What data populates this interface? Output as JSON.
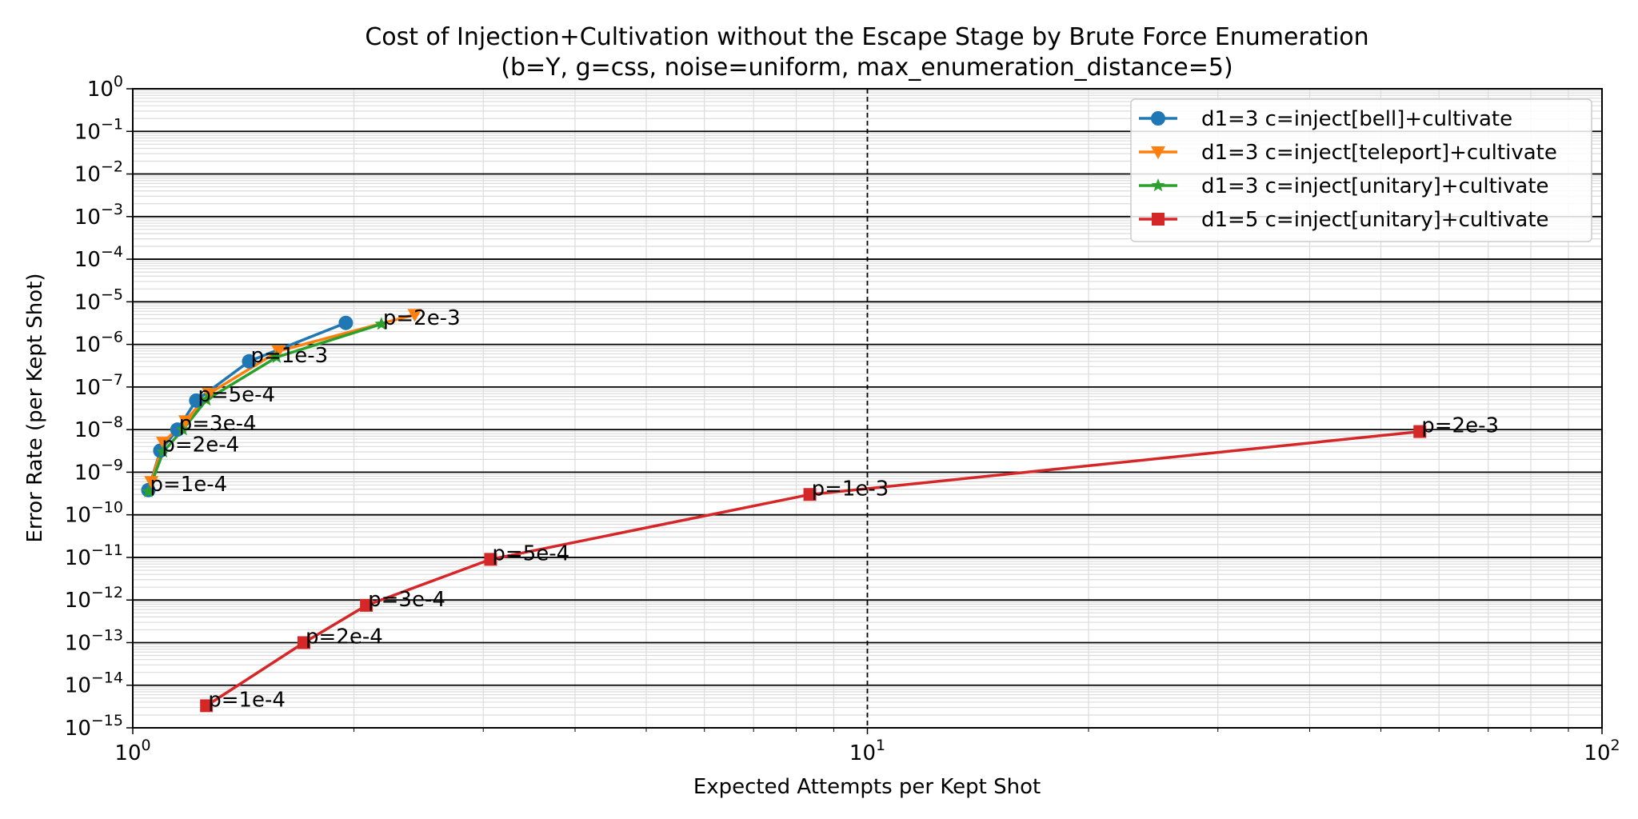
{
  "chart_data": {
    "type": "line",
    "title": "Cost of Injection+Cultivation without the Escape Stage by Brute Force Enumeration",
    "subtitle": "(b=Y, g=css, noise=uniform, max_enumeration_distance=5)",
    "xlabel": "Expected Attempts per Kept Shot",
    "ylabel": "Error Rate (per Kept Shot)",
    "xscale": "log",
    "yscale": "log",
    "xlim": [
      1,
      100
    ],
    "ylim": [
      1e-15,
      1
    ],
    "grid": true,
    "legend_placement": "upper right",
    "x_tick_labels": [
      {
        "base": "10",
        "exp": "0",
        "value": 1
      },
      {
        "base": "10",
        "exp": "1",
        "value": 10
      },
      {
        "base": "10",
        "exp": "2",
        "value": 100
      }
    ],
    "y_tick_labels": [
      {
        "base": "10",
        "exp": "0",
        "value": 0
      },
      {
        "base": "10",
        "exp": "−1",
        "value": -1
      },
      {
        "base": "10",
        "exp": "−2",
        "value": -2
      },
      {
        "base": "10",
        "exp": "−3",
        "value": -3
      },
      {
        "base": "10",
        "exp": "−4",
        "value": -4
      },
      {
        "base": "10",
        "exp": "−5",
        "value": -5
      },
      {
        "base": "10",
        "exp": "−6",
        "value": -6
      },
      {
        "base": "10",
        "exp": "−7",
        "value": -7
      },
      {
        "base": "10",
        "exp": "−8",
        "value": -8
      },
      {
        "base": "10",
        "exp": "−9",
        "value": -9
      },
      {
        "base": "10",
        "exp": "−10",
        "value": -10
      },
      {
        "base": "10",
        "exp": "−11",
        "value": -11
      },
      {
        "base": "10",
        "exp": "−12",
        "value": -12
      },
      {
        "base": "10",
        "exp": "−13",
        "value": -13
      },
      {
        "base": "10",
        "exp": "−14",
        "value": -14
      },
      {
        "base": "10",
        "exp": "−15",
        "value": -15
      }
    ],
    "series": [
      {
        "name": "d1=3 c=inject[bell]+cultivate",
        "color": "#1f77b4",
        "marker": "circle",
        "x": [
          1.05,
          1.09,
          1.15,
          1.22,
          1.44,
          1.95
        ],
        "y": [
          3.8e-10,
          3.2e-09,
          1e-08,
          4.8e-08,
          4e-07,
          3.2e-06
        ]
      },
      {
        "name": "d1=3 c=inject[teleport]+cultivate",
        "color": "#ff7f0e",
        "marker": "triangle-down",
        "x": [
          1.06,
          1.1,
          1.18,
          1.27,
          1.58,
          2.42
        ],
        "y": [
          6e-10,
          5e-09,
          1.6e-08,
          7e-08,
          7e-07,
          5e-06
        ]
      },
      {
        "name": "d1=3 c=inject[unitary]+cultivate",
        "color": "#2ca02c",
        "marker": "star",
        "x": [
          1.05,
          1.1,
          1.17,
          1.26,
          1.57,
          2.18
        ],
        "y": [
          3.5e-10,
          3e-09,
          1e-08,
          5e-08,
          5e-07,
          3e-06
        ]
      },
      {
        "name": "d1=5 c=inject[unitary]+cultivate",
        "color": "#d62728",
        "marker": "square",
        "x": [
          1.26,
          1.71,
          2.08,
          3.07,
          8.35,
          56.5
        ],
        "y": [
          3.3e-15,
          1e-13,
          7.5e-13,
          9e-12,
          3e-10,
          9e-09
        ]
      }
    ],
    "annotations": [
      {
        "text": "p=1e-4",
        "x": 1.05,
        "y": 3.8e-10
      },
      {
        "text": "p=2e-4",
        "x": 1.09,
        "y": 3.2e-09
      },
      {
        "text": "p=3e-4",
        "x": 1.15,
        "y": 1e-08
      },
      {
        "text": "p=5e-4",
        "x": 1.22,
        "y": 4.8e-08
      },
      {
        "text": "p=1e-3",
        "x": 1.44,
        "y": 4e-07
      },
      {
        "text": "p=2e-3",
        "x": 2.18,
        "y": 3e-06
      },
      {
        "text": "p=1e-4",
        "x": 1.26,
        "y": 3.3e-15
      },
      {
        "text": "p=2e-4",
        "x": 1.71,
        "y": 1e-13
      },
      {
        "text": "p=3e-4",
        "x": 2.08,
        "y": 7.5e-13
      },
      {
        "text": "p=5e-4",
        "x": 3.07,
        "y": 9e-12
      },
      {
        "text": "p=1e-3",
        "x": 8.35,
        "y": 3e-10
      },
      {
        "text": "p=2e-3",
        "x": 56.5,
        "y": 9e-09
      }
    ]
  }
}
